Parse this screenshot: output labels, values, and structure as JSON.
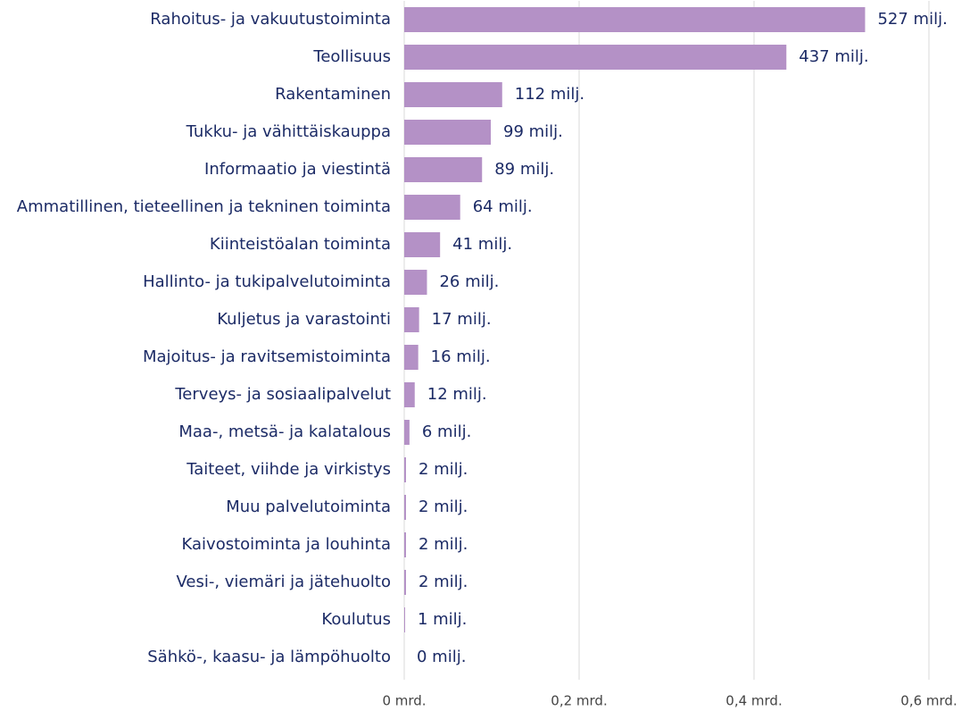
{
  "chart_data": {
    "type": "bar",
    "orientation": "horizontal",
    "categories": [
      "Rahoitus- ja vakuutustoiminta",
      "Teollisuus",
      "Rakentaminen",
      "Tukku- ja vähittäiskauppa",
      "Informaatio ja viestintä",
      "Ammatillinen, tieteellinen ja tekninen toiminta",
      "Kiinteistöalan toiminta",
      "Hallinto- ja tukipalvelutoiminta",
      "Kuljetus ja varastointi",
      "Majoitus- ja ravitsemistoiminta",
      "Terveys- ja sosiaalipalvelut",
      "Maa-, metsä- ja kalatalous",
      "Taiteet, viihde ja virkistys",
      "Muu palvelutoiminta",
      "Kaivostoiminta ja louhinta",
      "Vesi-, viemäri ja jätehuolto",
      "Koulutus",
      "Sähkö-, kaasu- ja lämpöhuolto"
    ],
    "values": [
      0.527,
      0.437,
      0.112,
      0.099,
      0.089,
      0.064,
      0.041,
      0.026,
      0.017,
      0.016,
      0.012,
      0.006,
      0.002,
      0.002,
      0.002,
      0.002,
      0.001,
      0
    ],
    "value_labels": [
      "527 milj.",
      "437 milj.",
      "112 milj.",
      "99 milj.",
      "89 milj.",
      "64 milj.",
      "41 milj.",
      "26 milj.",
      "17 milj.",
      "16 milj.",
      "12 milj.",
      "6 milj.",
      "2 milj.",
      "2 milj.",
      "2 milj.",
      "2 milj.",
      "1 milj.",
      "0 milj."
    ],
    "color": "#b491c6",
    "xlim": [
      0,
      0.65
    ],
    "xticks": [
      {
        "value": 0,
        "label": "0 mrd."
      },
      {
        "value": 0.2,
        "label": "0,2 mrd."
      },
      {
        "value": 0.4,
        "label": "0,4 mrd."
      },
      {
        "value": 0.6,
        "label": "0,6 mrd."
      }
    ],
    "grid": true
  }
}
